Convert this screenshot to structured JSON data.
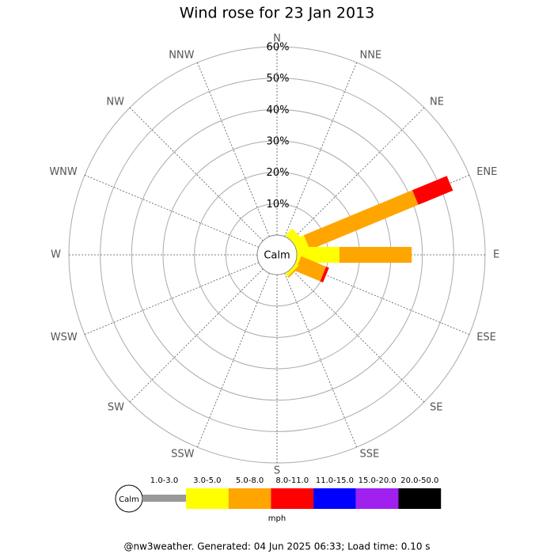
{
  "chart_data": {
    "type": "windrose",
    "title": "Wind rose for 23 Jan 2013",
    "directions": [
      "N",
      "NNE",
      "NE",
      "ENE",
      "E",
      "ESE",
      "SE",
      "SSE",
      "S",
      "SSW",
      "SW",
      "WSW",
      "W",
      "WNW",
      "NW",
      "NNW"
    ],
    "rlim": [
      0,
      60
    ],
    "rticks": [
      {
        "value": 10,
        "label": "10%"
      },
      {
        "value": 20,
        "label": "20%"
      },
      {
        "value": 30,
        "label": "30%"
      },
      {
        "value": 40,
        "label": "40%"
      },
      {
        "value": 50,
        "label": "50%"
      },
      {
        "value": 60,
        "label": "60%"
      }
    ],
    "calm_label": "Calm",
    "unit": "mph",
    "series": [
      {
        "name": "1.0-3.0",
        "color": "#999999",
        "values": [
          0,
          0,
          0,
          0,
          0,
          0,
          0,
          0,
          0,
          0,
          0,
          0,
          0,
          0,
          0,
          0
        ]
      },
      {
        "name": "3.0-5.0",
        "color": "#ffff00",
        "values": [
          0,
          0,
          3,
          4,
          13.6,
          1,
          1,
          0,
          0,
          0,
          0,
          0,
          0,
          0,
          0,
          0
        ]
      },
      {
        "name": "5.0-8.0",
        "color": "#ffa500",
        "values": [
          0,
          0,
          0,
          37.4,
          23,
          8.6,
          0.5,
          0,
          0,
          0,
          0,
          0,
          0,
          0,
          0,
          0
        ]
      },
      {
        "name": "8.0-11.0",
        "color": "#ff0000",
        "values": [
          0,
          0,
          0,
          11.9,
          0,
          1,
          0,
          0,
          0,
          0,
          0,
          0,
          0,
          0,
          0,
          0
        ]
      },
      {
        "name": "11.0-15.0",
        "color": "#0000ff",
        "values": [
          0,
          0,
          0,
          0,
          0,
          0,
          0,
          0,
          0,
          0,
          0,
          0,
          0,
          0,
          0,
          0
        ]
      },
      {
        "name": "15.0-20.0",
        "color": "#a020f0",
        "values": [
          0,
          0,
          0,
          0,
          0,
          0,
          0,
          0,
          0,
          0,
          0,
          0,
          0,
          0,
          0,
          0
        ]
      },
      {
        "name": "20.0-50.0",
        "color": "#000000",
        "values": [
          0,
          0,
          0,
          0,
          0,
          0,
          0,
          0,
          0,
          0,
          0,
          0,
          0,
          0,
          0,
          0
        ]
      }
    ],
    "footer": "@nw3weather. Generated: 04 Jun 2025 06:33; Load time: 0.10 s"
  }
}
